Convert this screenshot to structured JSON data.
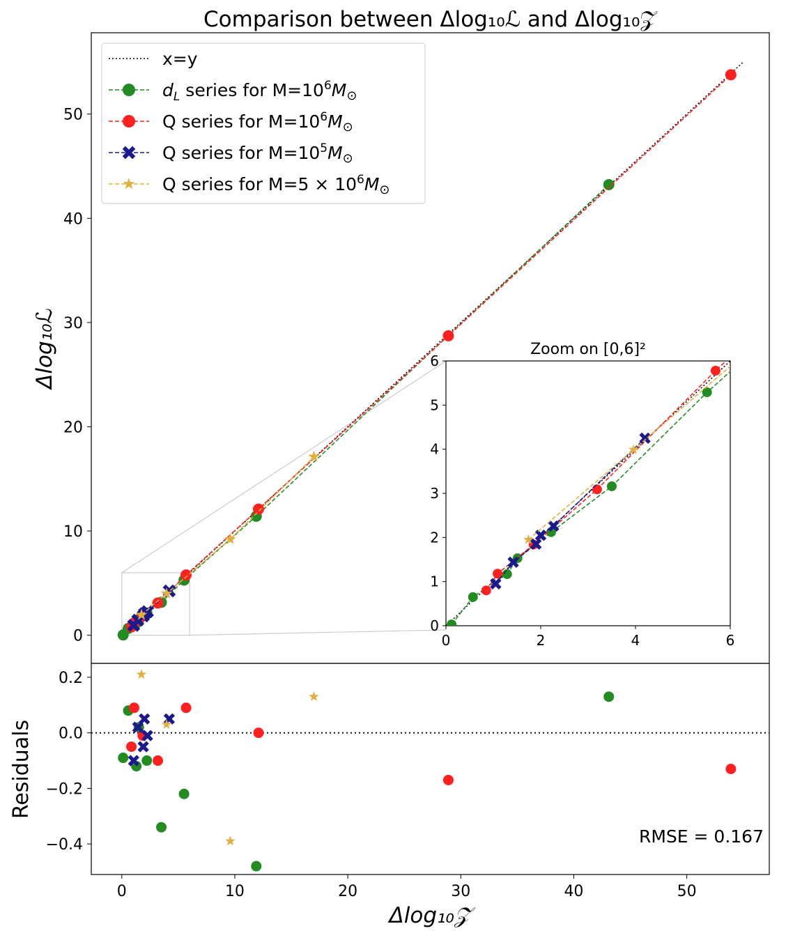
{
  "chart_data": {
    "type": "scatter",
    "title": "Comparison between Δlog₁₀ℒ and Δlog₁₀𝒵",
    "xlabel": "Δlog₁₀𝒵",
    "ylabel": "Δlog₁₀ℒ",
    "residual_ylabel": "Residuals",
    "xlim": [
      -2.7,
      57.3
    ],
    "ylim": [
      -2.7,
      57.8
    ],
    "residual_ylim": [
      -0.51,
      0.25
    ],
    "xticks": [
      0,
      10,
      20,
      30,
      40,
      50
    ],
    "yticks": [
      0,
      10,
      20,
      30,
      40,
      50
    ],
    "residual_yticks": [
      0.2,
      0.0,
      -0.2,
      -0.4
    ],
    "residual_ytick_labels": [
      "0.2",
      "0.0",
      "−0.2",
      "−0.4"
    ],
    "legend_placement": "top-left",
    "rmse_label": "RMSE = 0.167",
    "reference_line": {
      "name": "x=y",
      "color": "#000000"
    },
    "inset": {
      "title": "Zoom on [0,6]²",
      "xlim": [
        0,
        6
      ],
      "ylim": [
        0,
        6
      ],
      "xticks": [
        0,
        2,
        4,
        6
      ],
      "yticks": [
        0,
        1,
        2,
        3,
        4,
        5,
        6
      ]
    },
    "series": [
      {
        "name": "d_L series for M=10^6 M_⊙",
        "legend_main": "d",
        "legend_sub": "L",
        "legend_rest": " series for M=10",
        "legend_sup": "6",
        "legend_end": "M",
        "legend_sun": "⊙",
        "color": "#228B22",
        "marker": "circle",
        "x": [
          0.12,
          0.57,
          1.29,
          1.51,
          2.22,
          3.5,
          5.51,
          11.9,
          43.1
        ],
        "residuals": [
          -0.09,
          0.08,
          -0.12,
          0.02,
          -0.1,
          -0.34,
          -0.22,
          -0.48,
          0.13
        ]
      },
      {
        "name": "Q series for M=10^6 M_⊙",
        "legend_main": "Q series for M=10",
        "legend_sup": "6",
        "legend_end": "M",
        "legend_sun": "⊙",
        "color": "#FF2020",
        "marker": "circle",
        "x": [
          0.85,
          1.09,
          1.85,
          3.19,
          5.69,
          12.1,
          28.9,
          53.9
        ],
        "residuals": [
          -0.05,
          0.09,
          -0.01,
          -0.1,
          0.09,
          0.0,
          -0.17,
          -0.13
        ]
      },
      {
        "name": "Q series for M=10^5 M_⊙",
        "legend_main": "Q series for M=10",
        "legend_sup": "5",
        "legend_end": "M",
        "legend_sun": "⊙",
        "color": "#1A1A8C",
        "marker": "x",
        "x": [
          1.05,
          1.42,
          1.9,
          2.0,
          2.27,
          4.2
        ],
        "residuals": [
          -0.1,
          0.02,
          -0.05,
          0.05,
          -0.01,
          0.05
        ]
      },
      {
        "name": "Q series for M=5×10^6 M_⊙",
        "legend_main": "Q series for M=5 × 10",
        "legend_sup": "6",
        "legend_end": "M",
        "legend_sun": "⊙",
        "color": "#E0B040",
        "marker": "star",
        "x": [
          1.74,
          3.96,
          9.6,
          17.0
        ],
        "residuals": [
          0.21,
          0.03,
          -0.39,
          0.13
        ]
      }
    ]
  }
}
